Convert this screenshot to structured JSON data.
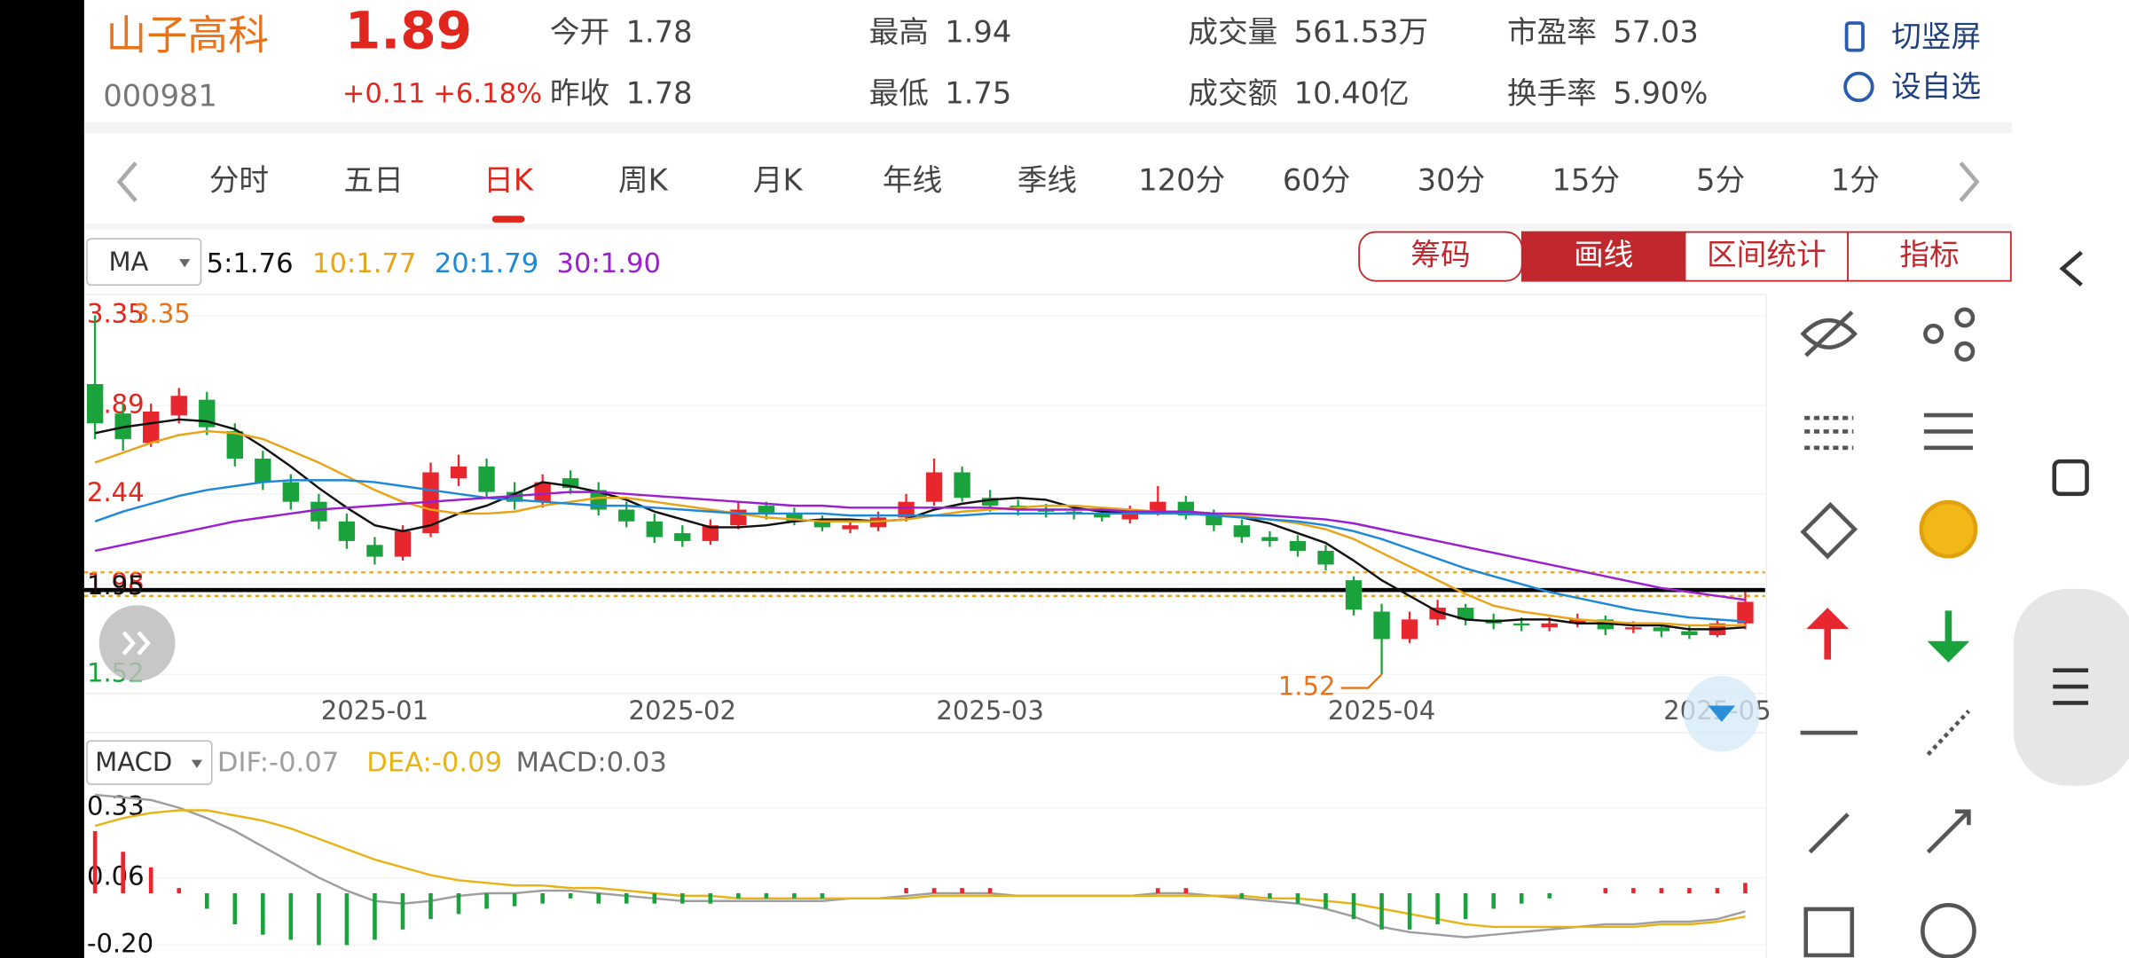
{
  "header": {
    "name": "山子高科",
    "code": "000981",
    "price": "1.89",
    "change": "+0.11",
    "change_pct": "+6.18%",
    "stats": [
      [
        {
          "label": "今开",
          "value": "1.78"
        },
        {
          "label": "最高",
          "value": "1.94"
        },
        {
          "label": "成交量",
          "value": "561.53万"
        },
        {
          "label": "市盈率",
          "value": "57.03"
        }
      ],
      [
        {
          "label": "昨收",
          "value": "1.78"
        },
        {
          "label": "最低",
          "value": "1.75"
        },
        {
          "label": "成交额",
          "value": "10.40亿"
        },
        {
          "label": "换手率",
          "value": "5.90%"
        }
      ]
    ],
    "actions": [
      "切竖屏",
      "设自选"
    ]
  },
  "tabs": {
    "items": [
      "分时",
      "五日",
      "日K",
      "周K",
      "月K",
      "年线",
      "季线",
      "120分",
      "60分",
      "30分",
      "15分",
      "5分",
      "1分"
    ],
    "active": 2
  },
  "tools": {
    "items": [
      "筹码",
      "画线",
      "区间统计",
      "指标"
    ],
    "active": 1
  },
  "chart_data": [
    {
      "type": "candlestick",
      "selector": "MA",
      "max_label": "3.35",
      "min_label": "1.52",
      "categories": [
        null,
        null,
        null,
        null,
        null,
        null,
        null,
        null,
        null,
        null,
        "2025-01",
        null,
        null,
        null,
        null,
        null,
        null,
        null,
        null,
        null,
        null,
        "2025-02",
        null,
        null,
        null,
        null,
        null,
        null,
        null,
        null,
        null,
        null,
        "2025-03",
        null,
        null,
        null,
        null,
        null,
        null,
        null,
        null,
        null,
        null,
        null,
        null,
        null,
        "2025-04",
        null,
        null,
        null,
        null,
        null,
        null,
        null,
        null,
        null,
        null,
        null,
        "2025-05",
        null
      ],
      "open": [
        3.0,
        2.85,
        2.7,
        2.84,
        2.92,
        2.76,
        2.62,
        2.5,
        2.4,
        2.3,
        2.18,
        2.12,
        2.24,
        2.52,
        2.58,
        2.45,
        2.4,
        2.52,
        2.46,
        2.36,
        2.3,
        2.24,
        2.2,
        2.28,
        2.38,
        2.34,
        2.3,
        2.26,
        2.27,
        2.32,
        2.4,
        2.55,
        2.42,
        2.38,
        2.36,
        2.35,
        2.34,
        2.31,
        2.35,
        2.4,
        2.33,
        2.28,
        2.22,
        2.2,
        2.15,
        2.0,
        1.84,
        1.7,
        1.8,
        1.86,
        1.8,
        1.78,
        1.76,
        1.78,
        1.8,
        1.75,
        1.76,
        1.74,
        1.72,
        1.78
      ],
      "high": [
        3.35,
        2.9,
        2.9,
        2.98,
        2.96,
        2.8,
        2.66,
        2.54,
        2.44,
        2.34,
        2.22,
        2.28,
        2.6,
        2.64,
        2.62,
        2.5,
        2.54,
        2.56,
        2.5,
        2.4,
        2.34,
        2.28,
        2.31,
        2.4,
        2.4,
        2.37,
        2.33,
        2.31,
        2.35,
        2.44,
        2.62,
        2.58,
        2.46,
        2.41,
        2.39,
        2.38,
        2.37,
        2.38,
        2.48,
        2.43,
        2.36,
        2.31,
        2.25,
        2.23,
        2.18,
        2.02,
        1.88,
        1.84,
        1.9,
        1.88,
        1.83,
        1.81,
        1.81,
        1.83,
        1.82,
        1.79,
        1.78,
        1.77,
        1.8,
        1.94
      ],
      "low": [
        2.72,
        2.66,
        2.68,
        2.8,
        2.74,
        2.58,
        2.46,
        2.36,
        2.26,
        2.16,
        2.08,
        2.1,
        2.22,
        2.48,
        2.42,
        2.36,
        2.37,
        2.44,
        2.33,
        2.27,
        2.19,
        2.17,
        2.18,
        2.26,
        2.31,
        2.28,
        2.25,
        2.24,
        2.25,
        2.3,
        2.38,
        2.4,
        2.35,
        2.33,
        2.32,
        2.31,
        2.3,
        2.29,
        2.33,
        2.31,
        2.25,
        2.19,
        2.17,
        2.12,
        2.05,
        1.82,
        1.52,
        1.68,
        1.77,
        1.77,
        1.75,
        1.74,
        1.74,
        1.76,
        1.72,
        1.73,
        1.71,
        1.7,
        1.71,
        1.75
      ],
      "close": [
        2.8,
        2.72,
        2.86,
        2.94,
        2.78,
        2.62,
        2.5,
        2.4,
        2.3,
        2.2,
        2.12,
        2.25,
        2.55,
        2.58,
        2.45,
        2.4,
        2.5,
        2.47,
        2.36,
        2.3,
        2.22,
        2.2,
        2.28,
        2.36,
        2.34,
        2.3,
        2.27,
        2.28,
        2.32,
        2.4,
        2.55,
        2.42,
        2.38,
        2.36,
        2.35,
        2.34,
        2.32,
        2.35,
        2.4,
        2.33,
        2.28,
        2.22,
        2.2,
        2.15,
        2.08,
        1.85,
        1.7,
        1.8,
        1.86,
        1.8,
        1.78,
        1.77,
        1.78,
        1.8,
        1.75,
        1.76,
        1.74,
        1.72,
        1.78,
        1.89
      ],
      "up_color": "#e8262d",
      "down_color": "#1aa33c",
      "series": [
        {
          "name": "5:1.76",
          "color": "#111111",
          "values": [
            2.75,
            2.78,
            2.8,
            2.82,
            2.81,
            2.77,
            2.68,
            2.58,
            2.47,
            2.37,
            2.28,
            2.25,
            2.28,
            2.34,
            2.38,
            2.44,
            2.5,
            2.48,
            2.45,
            2.41,
            2.35,
            2.31,
            2.27,
            2.27,
            2.28,
            2.3,
            2.31,
            2.31,
            2.3,
            2.31,
            2.36,
            2.39,
            2.41,
            2.42,
            2.41,
            2.37,
            2.35,
            2.34,
            2.35,
            2.35,
            2.34,
            2.32,
            2.29,
            2.24,
            2.19,
            2.1,
            2.0,
            1.92,
            1.84,
            1.8,
            1.79,
            1.8,
            1.8,
            1.78,
            1.78,
            1.77,
            1.77,
            1.75,
            1.75,
            1.76
          ]
        },
        {
          "name": "10:1.77",
          "color": "#e8a317",
          "values": [
            2.6,
            2.65,
            2.7,
            2.74,
            2.76,
            2.75,
            2.72,
            2.66,
            2.6,
            2.53,
            2.46,
            2.4,
            2.36,
            2.34,
            2.34,
            2.35,
            2.38,
            2.4,
            2.42,
            2.42,
            2.4,
            2.38,
            2.36,
            2.34,
            2.32,
            2.31,
            2.3,
            2.3,
            2.3,
            2.31,
            2.33,
            2.35,
            2.36,
            2.37,
            2.38,
            2.38,
            2.37,
            2.36,
            2.35,
            2.35,
            2.34,
            2.33,
            2.31,
            2.29,
            2.26,
            2.21,
            2.14,
            2.07,
            2.0,
            1.93,
            1.87,
            1.84,
            1.82,
            1.8,
            1.79,
            1.78,
            1.78,
            1.77,
            1.77,
            1.77
          ]
        },
        {
          "name": "20:1.79",
          "color": "#1e88d8",
          "values": [
            2.3,
            2.35,
            2.39,
            2.43,
            2.46,
            2.48,
            2.5,
            2.51,
            2.51,
            2.51,
            2.5,
            2.48,
            2.46,
            2.44,
            2.42,
            2.41,
            2.4,
            2.39,
            2.38,
            2.38,
            2.37,
            2.36,
            2.35,
            2.34,
            2.34,
            2.34,
            2.34,
            2.33,
            2.33,
            2.33,
            2.33,
            2.33,
            2.34,
            2.34,
            2.34,
            2.34,
            2.34,
            2.34,
            2.34,
            2.34,
            2.33,
            2.32,
            2.31,
            2.3,
            2.28,
            2.25,
            2.21,
            2.16,
            2.11,
            2.06,
            2.02,
            1.98,
            1.94,
            1.91,
            1.88,
            1.85,
            1.83,
            1.81,
            1.8,
            1.79
          ]
        },
        {
          "name": "30:1.90",
          "color": "#9b1fd0",
          "values": [
            2.15,
            2.18,
            2.21,
            2.24,
            2.27,
            2.3,
            2.32,
            2.34,
            2.36,
            2.37,
            2.38,
            2.39,
            2.4,
            2.41,
            2.42,
            2.43,
            2.44,
            2.45,
            2.45,
            2.44,
            2.43,
            2.42,
            2.41,
            2.4,
            2.39,
            2.38,
            2.38,
            2.37,
            2.37,
            2.37,
            2.37,
            2.37,
            2.37,
            2.36,
            2.36,
            2.36,
            2.36,
            2.35,
            2.35,
            2.35,
            2.34,
            2.34,
            2.33,
            2.32,
            2.31,
            2.29,
            2.26,
            2.23,
            2.2,
            2.17,
            2.14,
            2.11,
            2.08,
            2.05,
            2.02,
            1.99,
            1.96,
            1.94,
            1.92,
            1.9
          ]
        }
      ],
      "ylim": [
        1.43,
        3.45
      ],
      "yticks": [
        3.35,
        2.89,
        2.44,
        1.98,
        1.52
      ],
      "hline": {
        "value": 1.95,
        "label": "1.95"
      },
      "dashed_lines": [
        2.04,
        1.92
      ]
    },
    {
      "type": "macd",
      "selector": "MACD",
      "ylim": [
        -0.25,
        0.41
      ],
      "yticks": [
        0.33,
        0.06,
        {
          "value": -0.2,
          "label": "-0.20"
        }
      ],
      "series": [
        {
          "name": "DIF:-0.07",
          "color": "#9e9e9e",
          "values": [
            0.38,
            0.37,
            0.36,
            0.33,
            0.29,
            0.24,
            0.18,
            0.12,
            0.06,
            0.01,
            -0.03,
            -0.04,
            -0.03,
            -0.01,
            0.0,
            0.0,
            0.01,
            0.01,
            0.0,
            -0.01,
            -0.02,
            -0.03,
            -0.03,
            -0.03,
            -0.03,
            -0.03,
            -0.03,
            -0.02,
            -0.02,
            -0.01,
            0.0,
            0.0,
            0.0,
            -0.01,
            -0.01,
            -0.01,
            -0.01,
            -0.01,
            0.0,
            0.0,
            -0.01,
            -0.02,
            -0.03,
            -0.04,
            -0.06,
            -0.09,
            -0.13,
            -0.15,
            -0.16,
            -0.17,
            -0.16,
            -0.15,
            -0.14,
            -0.13,
            -0.12,
            -0.12,
            -0.11,
            -0.11,
            -0.1,
            -0.07
          ]
        },
        {
          "name": "DEA:-0.09",
          "color": "#e8b317",
          "values": [
            0.26,
            0.29,
            0.31,
            0.32,
            0.32,
            0.3,
            0.28,
            0.25,
            0.21,
            0.17,
            0.13,
            0.1,
            0.07,
            0.05,
            0.04,
            0.03,
            0.03,
            0.02,
            0.02,
            0.01,
            0.0,
            -0.01,
            -0.01,
            -0.02,
            -0.02,
            -0.02,
            -0.02,
            -0.02,
            -0.02,
            -0.02,
            -0.01,
            -0.01,
            -0.01,
            -0.01,
            -0.01,
            -0.01,
            -0.01,
            -0.01,
            -0.01,
            -0.01,
            -0.01,
            -0.01,
            -0.02,
            -0.02,
            -0.03,
            -0.04,
            -0.06,
            -0.08,
            -0.1,
            -0.12,
            -0.13,
            -0.13,
            -0.13,
            -0.13,
            -0.13,
            -0.13,
            -0.12,
            -0.12,
            -0.11,
            -0.09
          ]
        },
        {
          "name": "MACD:0.03",
          "color": "#666666",
          "histogram": true,
          "values": [
            0.24,
            0.16,
            0.1,
            0.02,
            -0.06,
            -0.12,
            -0.16,
            -0.18,
            -0.2,
            -0.2,
            -0.18,
            -0.14,
            -0.1,
            -0.08,
            -0.06,
            -0.05,
            -0.04,
            -0.02,
            -0.04,
            -0.04,
            -0.04,
            -0.04,
            -0.04,
            -0.02,
            -0.02,
            -0.02,
            -0.02,
            0.0,
            0.0,
            0.02,
            0.02,
            0.02,
            0.02,
            0.0,
            0.0,
            0.0,
            0.0,
            0.0,
            0.02,
            0.02,
            0.0,
            -0.02,
            -0.02,
            -0.04,
            -0.06,
            -0.1,
            -0.14,
            -0.14,
            -0.12,
            -0.1,
            -0.06,
            -0.04,
            -0.02,
            0.0,
            0.02,
            0.02,
            0.02,
            0.02,
            0.02,
            0.04
          ]
        }
      ]
    }
  ]
}
